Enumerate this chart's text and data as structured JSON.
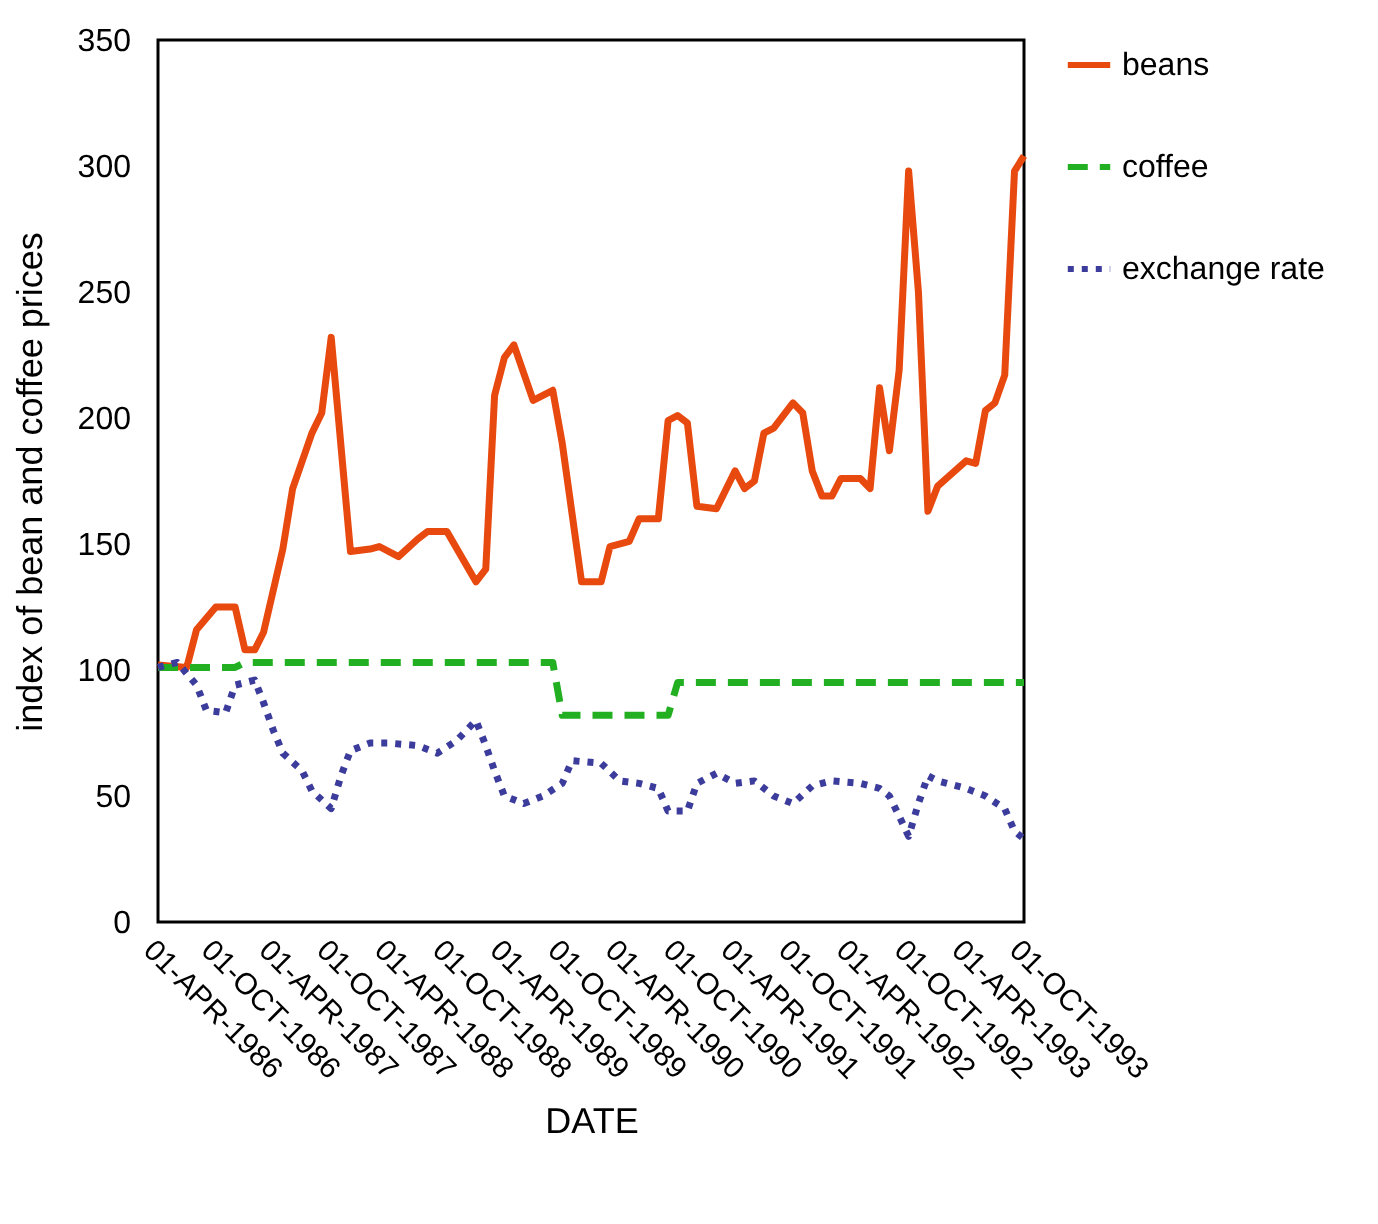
{
  "chart_data": {
    "type": "line",
    "xlabel": "DATE",
    "ylabel": "index of bean and coffee prices",
    "xlim": [
      "1986-04-01",
      "1993-10-01"
    ],
    "xticks": [
      {
        "value": "1986-04-01",
        "label": "01-APR-1986"
      },
      {
        "value": "1986-10-01",
        "label": "01-OCT-1986"
      },
      {
        "value": "1987-04-01",
        "label": "01-APR-1987"
      },
      {
        "value": "1987-10-01",
        "label": "01-OCT-1987"
      },
      {
        "value": "1988-04-01",
        "label": "01-APR-1988"
      },
      {
        "value": "1988-10-01",
        "label": "01-OCT-1988"
      },
      {
        "value": "1989-04-01",
        "label": "01-APR-1989"
      },
      {
        "value": "1989-10-01",
        "label": "01-OCT-1989"
      },
      {
        "value": "1990-04-01",
        "label": "01-APR-1990"
      },
      {
        "value": "1990-10-01",
        "label": "01-OCT-1990"
      },
      {
        "value": "1991-04-01",
        "label": "01-APR-1991"
      },
      {
        "value": "1991-10-01",
        "label": "01-OCT-1991"
      },
      {
        "value": "1992-04-01",
        "label": "01-APR-1992"
      },
      {
        "value": "1992-10-01",
        "label": "01-OCT-1992"
      },
      {
        "value": "1993-04-01",
        "label": "01-APR-1993"
      },
      {
        "value": "1993-10-01",
        "label": "01-OCT-1993"
      }
    ],
    "ylim": [
      0,
      350
    ],
    "yticks": [
      0,
      50,
      100,
      150,
      200,
      250,
      300,
      350
    ],
    "grid": false,
    "legend": "right",
    "series": [
      {
        "name": "beans",
        "color": "#e8490f",
        "line_style": "solid",
        "x": [
          "1986-04",
          "1986-07",
          "1986-08",
          "1986-10",
          "1986-12",
          "1987-01",
          "1987-02",
          "1987-03",
          "1987-05",
          "1987-06",
          "1987-08",
          "1987-09",
          "1987-10",
          "1987-12",
          "1988-02",
          "1988-03",
          "1988-05",
          "1988-07",
          "1988-08",
          "1988-10",
          "1989-01",
          "1989-02",
          "1989-03",
          "1989-04",
          "1989-05",
          "1989-07",
          "1989-09",
          "1989-10",
          "1989-12",
          "1990-02",
          "1990-03",
          "1990-05",
          "1990-06",
          "1990-08",
          "1990-09",
          "1990-10",
          "1990-11",
          "1990-12",
          "1991-02",
          "1991-04",
          "1991-05",
          "1991-06",
          "1991-07",
          "1991-08",
          "1991-10",
          "1991-11",
          "1991-12",
          "1992-01",
          "1992-02",
          "1992-03",
          "1992-05",
          "1992-06",
          "1992-07",
          "1992-08",
          "1992-09",
          "1992-10",
          "1992-11",
          "1992-12",
          "1993-01",
          "1993-04",
          "1993-05",
          "1993-06",
          "1993-07",
          "1993-08",
          "1993-09",
          "1993-10"
        ],
        "values": [
          102,
          101,
          116,
          125,
          125,
          108,
          108,
          115,
          148,
          172,
          194,
          202,
          232,
          147,
          148,
          149,
          145,
          152,
          155,
          155,
          135,
          140,
          209,
          224,
          229,
          207,
          211,
          190,
          135,
          135,
          149,
          151,
          160,
          160,
          199,
          201,
          198,
          165,
          164,
          179,
          172,
          175,
          194,
          196,
          206,
          202,
          179,
          169,
          169,
          176,
          176,
          172,
          212,
          187,
          219,
          298,
          250,
          163,
          173,
          183,
          182,
          203,
          206,
          217,
          298,
          304
        ]
      },
      {
        "name": "coffee",
        "color": "#22b022",
        "line_style": "dashed",
        "x": [
          "1986-04",
          "1986-12",
          "1987-01",
          "1989-09",
          "1989-10",
          "1990-09",
          "1990-10",
          "1993-10"
        ],
        "values": [
          101,
          101,
          103,
          103,
          82,
          82,
          95,
          95
        ]
      },
      {
        "name": "exchange rate",
        "color": "#3c3c9c",
        "line_style": "dotted",
        "x": [
          "1986-04",
          "1986-06",
          "1986-08",
          "1986-09",
          "1986-11",
          "1986-12",
          "1987-02",
          "1987-03",
          "1987-04",
          "1987-05",
          "1987-07",
          "1987-08",
          "1987-10",
          "1987-11",
          "1987-12",
          "1988-02",
          "1988-04",
          "1988-07",
          "1988-09",
          "1988-11",
          "1989-01",
          "1989-02",
          "1989-03",
          "1989-04",
          "1989-06",
          "1989-08",
          "1989-10",
          "1989-11",
          "1990-02",
          "1990-04",
          "1990-06",
          "1990-08",
          "1990-09",
          "1990-11",
          "1990-12",
          "1991-02",
          "1991-04",
          "1991-06",
          "1991-08",
          "1991-10",
          "1991-12",
          "1992-02",
          "1992-05",
          "1992-07",
          "1992-08",
          "1992-09",
          "1992-10",
          "1992-11",
          "1992-12",
          "1993-01",
          "1993-04",
          "1993-06",
          "1993-08",
          "1993-09",
          "1993-10"
        ],
        "values": [
          101,
          103,
          94,
          84,
          83,
          94,
          96,
          87,
          76,
          67,
          60,
          52,
          45,
          58,
          68,
          71,
          71,
          70,
          67,
          72,
          80,
          70,
          60,
          50,
          47,
          50,
          55,
          64,
          63,
          56,
          55,
          53,
          44,
          44,
          55,
          59,
          55,
          56,
          50,
          47,
          54,
          56,
          55,
          53,
          50,
          42,
          34,
          47,
          58,
          56,
          53,
          50,
          45,
          36,
          33
        ]
      }
    ]
  }
}
